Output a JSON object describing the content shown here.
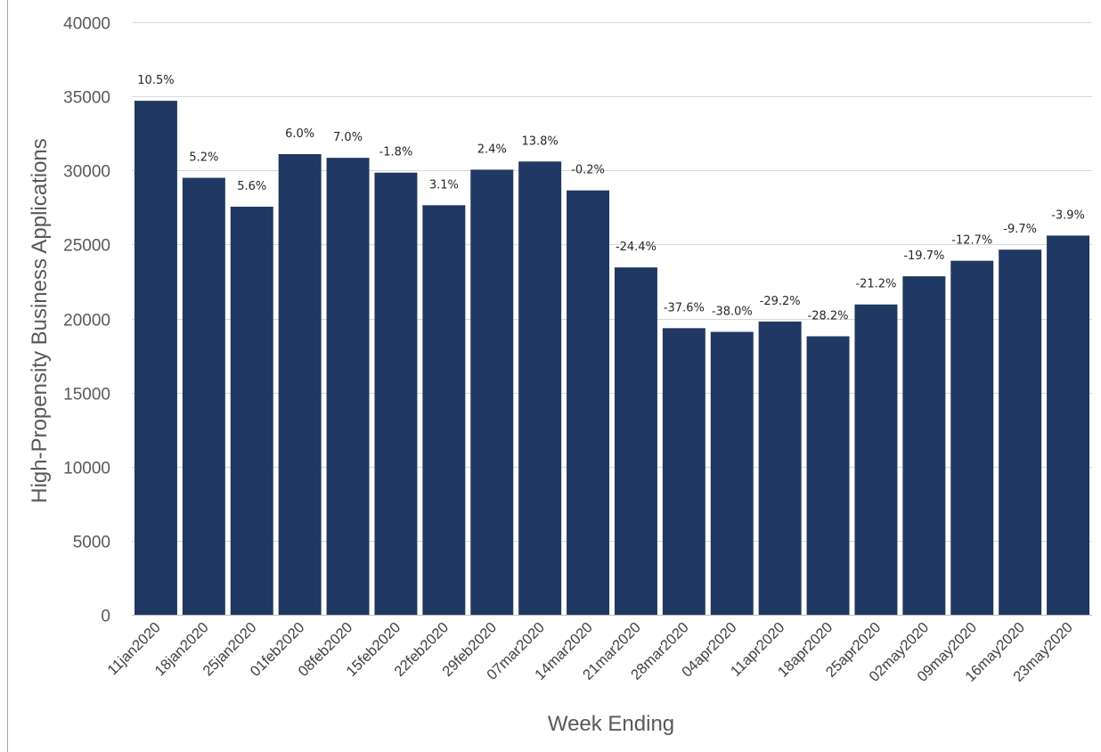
{
  "chart_data": {
    "type": "bar",
    "title": "",
    "xlabel": "Week Ending",
    "ylabel": "High-Propensity Business Applications",
    "ylim": [
      0,
      40000
    ],
    "yticks": [
      "0",
      "5000",
      "10000",
      "15000",
      "20000",
      "25000",
      "30000",
      "35000",
      "40000"
    ],
    "grid": "horizontal",
    "legend": "none",
    "bar_color": "#203864",
    "categories": [
      "11jan2020",
      "18jan2020",
      "25jan2020",
      "01feb2020",
      "08feb2020",
      "15feb2020",
      "22feb2020",
      "29feb2020",
      "07mar2020",
      "14mar2020",
      "21mar2020",
      "28mar2020",
      "04apr2020",
      "11apr2020",
      "18apr2020",
      "25apr2020",
      "02may2020",
      "09may2020",
      "16may2020",
      "23may2020"
    ],
    "values": [
      34700,
      29500,
      27550,
      31100,
      30850,
      29850,
      27650,
      30050,
      30600,
      28650,
      23450,
      19350,
      19100,
      19800,
      18800,
      20950,
      22850,
      23900,
      24650,
      25600
    ],
    "data_labels": [
      "10.5%",
      "5.2%",
      "5.6%",
      "6.0%",
      "7.0%",
      "-1.8%",
      "3.1%",
      "2.4%",
      "13.8%",
      "-0.2%",
      "-24.4%",
      "-37.6%",
      "-38.0%",
      "-29.2%",
      "-28.2%",
      "-21.2%",
      "-19.7%",
      "-12.7%",
      "-9.7%",
      "-3.9%"
    ]
  }
}
